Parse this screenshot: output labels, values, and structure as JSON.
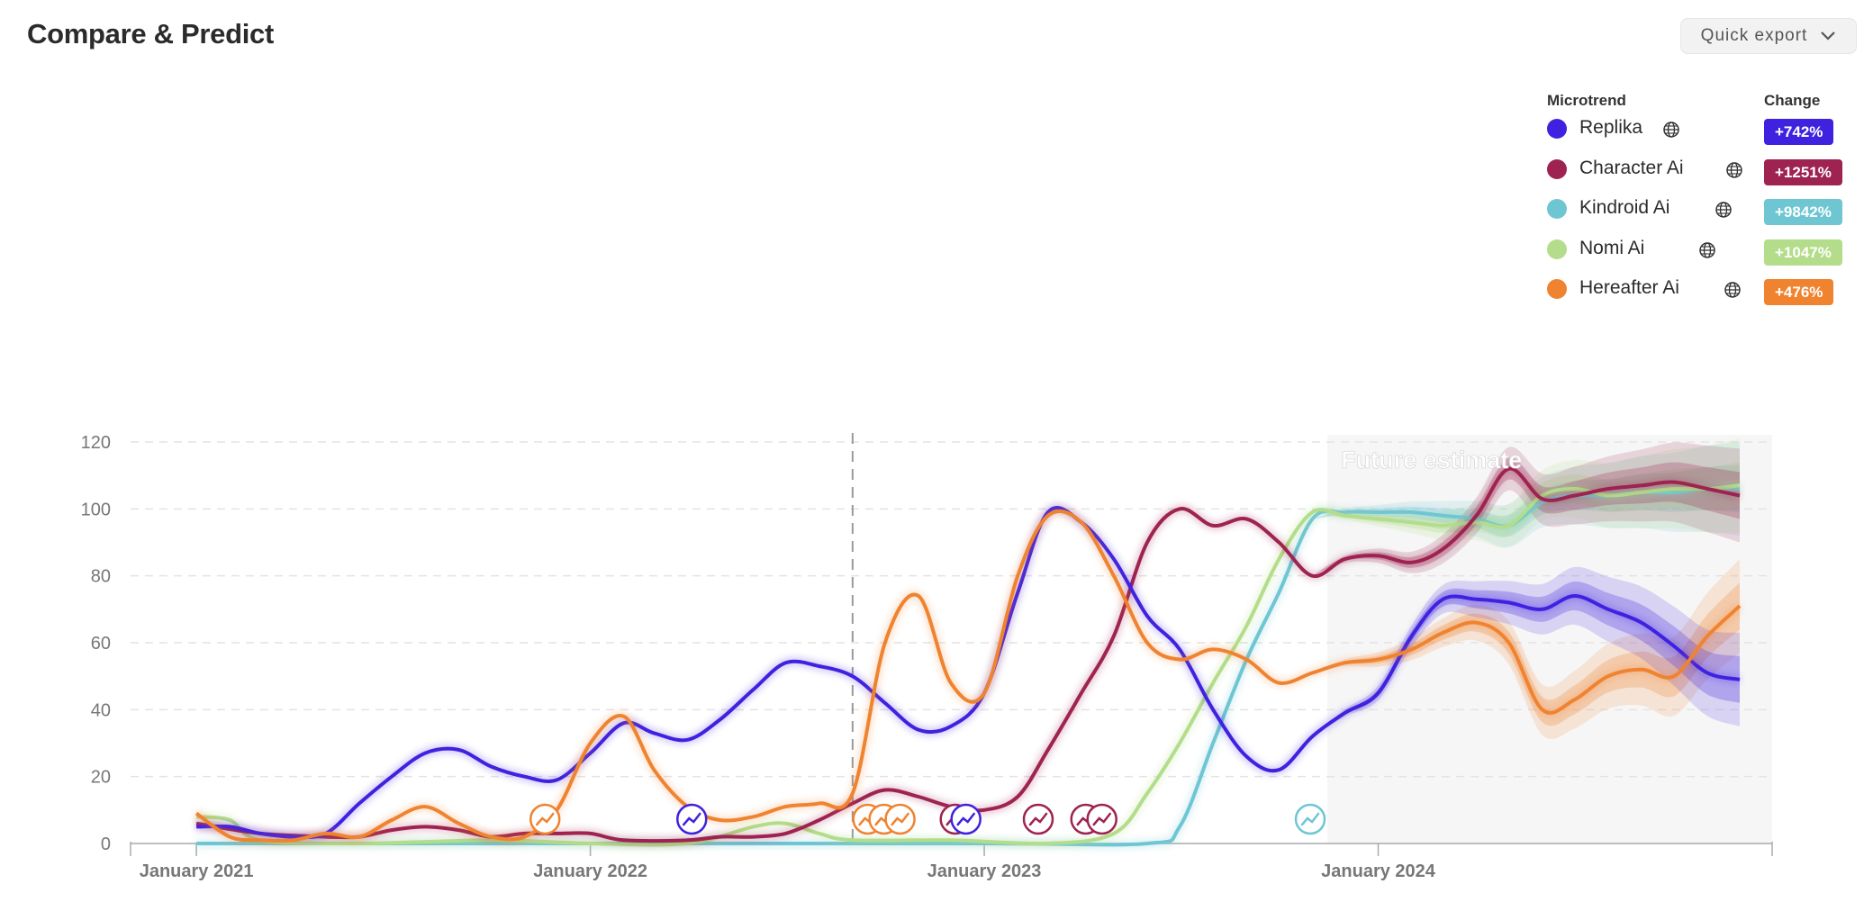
{
  "page": {
    "title": "Compare & Predict"
  },
  "toolbar": {
    "export_label": "Quick export",
    "export_icon": "chevron-down-icon"
  },
  "legend": {
    "header_name": "Microtrend",
    "header_change": "Change",
    "items": [
      {
        "name": "Replika",
        "change": "+742%",
        "color": "#3f22e0",
        "icon": "globe-icon"
      },
      {
        "name": "Character Ai",
        "change": "+1251%",
        "color": "#9e2350",
        "icon": "globe-icon"
      },
      {
        "name": "Kindroid Ai",
        "change": "+9842%",
        "color": "#6fc6d3",
        "icon": "globe-icon"
      },
      {
        "name": "Nomi Ai",
        "change": "+1047%",
        "color": "#b3dd8a",
        "icon": "globe-icon"
      },
      {
        "name": "Hereafter Ai",
        "change": "+476%",
        "color": "#f08330",
        "icon": "globe-icon"
      }
    ]
  },
  "chart_data": {
    "type": "line",
    "title": "",
    "xlabel": "",
    "ylabel": "",
    "ylim": [
      0,
      120
    ],
    "xlim": [
      "2020-11-01",
      "2024-12-31"
    ],
    "grid": true,
    "yticks": [
      0,
      20,
      40,
      60,
      80,
      100,
      120
    ],
    "xticks": [
      {
        "date": "2021-01-01",
        "label": "January 2021"
      },
      {
        "date": "2022-01-01",
        "label": "January 2022"
      },
      {
        "date": "2023-01-01",
        "label": "January 2023"
      },
      {
        "date": "2024-01-01",
        "label": "January 2024"
      }
    ],
    "forecast": {
      "label": "Future estimate",
      "start": "2023-11-15",
      "end": "2024-12-31"
    },
    "divider_date": "2022-09-01",
    "series": [
      {
        "name": "Replika",
        "color": "#3f22e0",
        "points": [
          [
            "2021-01-01",
            5
          ],
          [
            "2021-02-01",
            5
          ],
          [
            "2021-03-01",
            3
          ],
          [
            "2021-04-01",
            2
          ],
          [
            "2021-05-01",
            3
          ],
          [
            "2021-06-01",
            12
          ],
          [
            "2021-07-01",
            20
          ],
          [
            "2021-08-01",
            27
          ],
          [
            "2021-09-01",
            28
          ],
          [
            "2021-10-01",
            23
          ],
          [
            "2021-11-01",
            20
          ],
          [
            "2021-12-01",
            19
          ],
          [
            "2022-01-01",
            27
          ],
          [
            "2022-02-01",
            36
          ],
          [
            "2022-03-01",
            33
          ],
          [
            "2022-04-01",
            31
          ],
          [
            "2022-05-01",
            37
          ],
          [
            "2022-06-01",
            46
          ],
          [
            "2022-07-01",
            54
          ],
          [
            "2022-08-01",
            53
          ],
          [
            "2022-09-01",
            50
          ],
          [
            "2022-10-01",
            42
          ],
          [
            "2022-11-01",
            34
          ],
          [
            "2022-12-01",
            35
          ],
          [
            "2023-01-01",
            45
          ],
          [
            "2023-02-01",
            75
          ],
          [
            "2023-03-01",
            99
          ],
          [
            "2023-04-01",
            96
          ],
          [
            "2023-05-01",
            85
          ],
          [
            "2023-06-01",
            68
          ],
          [
            "2023-07-01",
            58
          ],
          [
            "2023-08-01",
            40
          ],
          [
            "2023-09-01",
            26
          ],
          [
            "2023-10-01",
            22
          ],
          [
            "2023-11-01",
            32
          ],
          [
            "2023-12-01",
            39
          ],
          [
            "2024-01-01",
            45
          ],
          [
            "2024-02-01",
            62
          ],
          [
            "2024-03-01",
            73
          ],
          [
            "2024-04-01",
            73
          ],
          [
            "2024-05-01",
            72
          ],
          [
            "2024-06-01",
            70
          ],
          [
            "2024-07-01",
            74
          ],
          [
            "2024-08-01",
            70
          ],
          [
            "2024-09-01",
            66
          ],
          [
            "2024-10-01",
            59
          ],
          [
            "2024-11-01",
            51
          ],
          [
            "2024-12-01",
            49
          ]
        ]
      },
      {
        "name": "Character Ai",
        "color": "#9e2350",
        "points": [
          [
            "2021-01-01",
            6
          ],
          [
            "2021-03-01",
            3
          ],
          [
            "2021-05-01",
            2
          ],
          [
            "2021-06-01",
            2
          ],
          [
            "2021-07-01",
            4
          ],
          [
            "2021-08-01",
            5
          ],
          [
            "2021-09-01",
            4
          ],
          [
            "2021-10-01",
            2
          ],
          [
            "2021-11-01",
            3
          ],
          [
            "2021-12-01",
            3
          ],
          [
            "2022-01-01",
            3
          ],
          [
            "2022-02-01",
            1
          ],
          [
            "2022-04-01",
            1
          ],
          [
            "2022-05-01",
            2
          ],
          [
            "2022-06-01",
            2
          ],
          [
            "2022-07-01",
            3
          ],
          [
            "2022-08-01",
            7
          ],
          [
            "2022-09-01",
            12
          ],
          [
            "2022-10-01",
            16
          ],
          [
            "2022-11-01",
            14
          ],
          [
            "2022-12-01",
            11
          ],
          [
            "2023-01-01",
            10
          ],
          [
            "2023-02-01",
            14
          ],
          [
            "2023-03-01",
            28
          ],
          [
            "2023-04-01",
            45
          ],
          [
            "2023-05-01",
            62
          ],
          [
            "2023-06-01",
            90
          ],
          [
            "2023-07-01",
            100
          ],
          [
            "2023-08-01",
            95
          ],
          [
            "2023-09-01",
            97
          ],
          [
            "2023-10-01",
            90
          ],
          [
            "2023-11-01",
            80
          ],
          [
            "2023-12-01",
            85
          ],
          [
            "2024-01-01",
            86
          ],
          [
            "2024-02-01",
            84
          ],
          [
            "2024-03-01",
            88
          ],
          [
            "2024-04-01",
            98
          ],
          [
            "2024-05-01",
            112
          ],
          [
            "2024-06-01",
            103
          ],
          [
            "2024-07-01",
            104
          ],
          [
            "2024-08-01",
            106
          ],
          [
            "2024-09-01",
            107
          ],
          [
            "2024-10-01",
            108
          ],
          [
            "2024-11-01",
            106
          ],
          [
            "2024-12-01",
            104
          ]
        ]
      },
      {
        "name": "Kindroid Ai",
        "color": "#6fc6d3",
        "points": [
          [
            "2021-01-01",
            0
          ],
          [
            "2022-01-01",
            0
          ],
          [
            "2023-01-01",
            0
          ],
          [
            "2023-06-01",
            0
          ],
          [
            "2023-07-01",
            5
          ],
          [
            "2023-08-01",
            30
          ],
          [
            "2023-09-01",
            55
          ],
          [
            "2023-10-01",
            75
          ],
          [
            "2023-11-01",
            97
          ],
          [
            "2023-12-01",
            99
          ],
          [
            "2024-01-01",
            99
          ],
          [
            "2024-02-01",
            99
          ],
          [
            "2024-03-01",
            98
          ],
          [
            "2024-04-01",
            97
          ],
          [
            "2024-05-01",
            95
          ],
          [
            "2024-06-01",
            102
          ],
          [
            "2024-07-01",
            104
          ],
          [
            "2024-08-01",
            104
          ],
          [
            "2024-09-01",
            105
          ],
          [
            "2024-10-01",
            105
          ],
          [
            "2024-11-01",
            106
          ],
          [
            "2024-12-01",
            106
          ]
        ]
      },
      {
        "name": "Nomi Ai",
        "color": "#b3dd8a",
        "points": [
          [
            "2021-01-01",
            8
          ],
          [
            "2021-02-01",
            7
          ],
          [
            "2021-03-01",
            1
          ],
          [
            "2021-06-01",
            0
          ],
          [
            "2021-10-01",
            1
          ],
          [
            "2022-01-01",
            0
          ],
          [
            "2022-04-01",
            0
          ],
          [
            "2022-06-01",
            5
          ],
          [
            "2022-07-01",
            6
          ],
          [
            "2022-08-01",
            3
          ],
          [
            "2022-09-01",
            1
          ],
          [
            "2022-12-01",
            1
          ],
          [
            "2023-03-01",
            0
          ],
          [
            "2023-05-01",
            3
          ],
          [
            "2023-06-01",
            15
          ],
          [
            "2023-07-01",
            30
          ],
          [
            "2023-08-01",
            48
          ],
          [
            "2023-09-01",
            65
          ],
          [
            "2023-10-01",
            85
          ],
          [
            "2023-11-01",
            99
          ],
          [
            "2023-12-01",
            98
          ],
          [
            "2024-01-01",
            97
          ],
          [
            "2024-02-01",
            96
          ],
          [
            "2024-03-01",
            95
          ],
          [
            "2024-04-01",
            96
          ],
          [
            "2024-05-01",
            95
          ],
          [
            "2024-06-01",
            104
          ],
          [
            "2024-07-01",
            106
          ],
          [
            "2024-08-01",
            104
          ],
          [
            "2024-09-01",
            105
          ],
          [
            "2024-10-01",
            106
          ],
          [
            "2024-11-01",
            106
          ],
          [
            "2024-12-01",
            107
          ]
        ]
      },
      {
        "name": "Hereafter Ai",
        "color": "#f08330",
        "points": [
          [
            "2021-01-01",
            9
          ],
          [
            "2021-02-01",
            2
          ],
          [
            "2021-03-01",
            1
          ],
          [
            "2021-04-01",
            1
          ],
          [
            "2021-05-01",
            3
          ],
          [
            "2021-06-01",
            2
          ],
          [
            "2021-07-01",
            7
          ],
          [
            "2021-08-01",
            11
          ],
          [
            "2021-09-01",
            6
          ],
          [
            "2021-10-01",
            2
          ],
          [
            "2021-11-01",
            2
          ],
          [
            "2021-12-01",
            10
          ],
          [
            "2022-01-01",
            30
          ],
          [
            "2022-02-01",
            38
          ],
          [
            "2022-03-01",
            22
          ],
          [
            "2022-04-01",
            11
          ],
          [
            "2022-05-01",
            7
          ],
          [
            "2022-06-01",
            8
          ],
          [
            "2022-07-01",
            11
          ],
          [
            "2022-08-01",
            12
          ],
          [
            "2022-09-01",
            15
          ],
          [
            "2022-10-01",
            60
          ],
          [
            "2022-11-01",
            74
          ],
          [
            "2022-12-01",
            48
          ],
          [
            "2023-01-01",
            45
          ],
          [
            "2023-02-01",
            80
          ],
          [
            "2023-03-01",
            98
          ],
          [
            "2023-04-01",
            96
          ],
          [
            "2023-05-01",
            80
          ],
          [
            "2023-06-01",
            60
          ],
          [
            "2023-07-01",
            55
          ],
          [
            "2023-08-01",
            58
          ],
          [
            "2023-09-01",
            55
          ],
          [
            "2023-10-01",
            48
          ],
          [
            "2023-11-01",
            51
          ],
          [
            "2023-12-01",
            54
          ],
          [
            "2024-01-01",
            55
          ],
          [
            "2024-02-01",
            58
          ],
          [
            "2024-03-01",
            63
          ],
          [
            "2024-04-01",
            66
          ],
          [
            "2024-05-01",
            60
          ],
          [
            "2024-06-01",
            40
          ],
          [
            "2024-07-01",
            43
          ],
          [
            "2024-08-01",
            50
          ],
          [
            "2024-09-01",
            52
          ],
          [
            "2024-10-01",
            50
          ],
          [
            "2024-11-01",
            62
          ],
          [
            "2024-12-01",
            71
          ]
        ]
      }
    ],
    "markers": [
      {
        "series": "Hereafter Ai",
        "date": "2021-11-20"
      },
      {
        "series": "Replika",
        "date": "2022-04-05"
      },
      {
        "series": "Hereafter Ai",
        "date": "2022-09-15"
      },
      {
        "series": "Hereafter Ai",
        "date": "2022-09-30"
      },
      {
        "series": "Hereafter Ai",
        "date": "2022-10-15"
      },
      {
        "series": "Character Ai",
        "date": "2022-12-05"
      },
      {
        "series": "Replika",
        "date": "2022-12-15"
      },
      {
        "series": "Character Ai",
        "date": "2023-02-20"
      },
      {
        "series": "Character Ai",
        "date": "2023-04-05"
      },
      {
        "series": "Character Ai",
        "date": "2023-04-20"
      },
      {
        "series": "Kindroid Ai",
        "date": "2023-10-30"
      }
    ]
  }
}
